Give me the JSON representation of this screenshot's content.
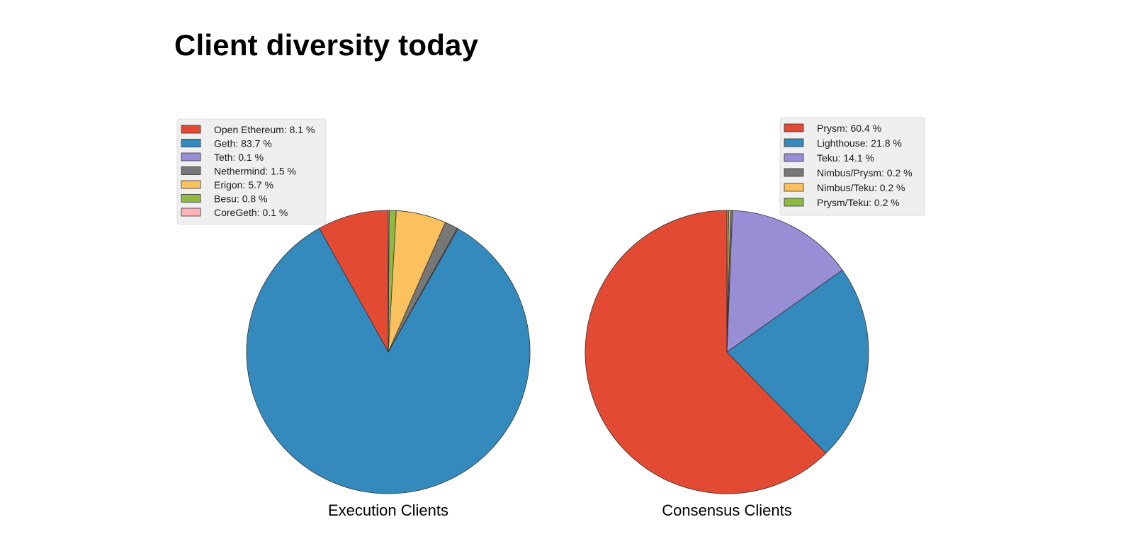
{
  "page": {
    "title": "Client diversity today"
  },
  "chart_data": [
    {
      "type": "pie",
      "title": "Execution Clients",
      "legend_position": "top-left",
      "start_angle_deg": 90,
      "direction": "counterclockwise",
      "slices": [
        {
          "label": "Open Ethereum",
          "value": 8.1,
          "legend": "Open Ethereum: 8.1 %",
          "color": "#E24A33"
        },
        {
          "label": "Geth",
          "value": 83.7,
          "legend": "Geth: 83.7 %",
          "color": "#348ABD"
        },
        {
          "label": "Teth",
          "value": 0.1,
          "legend": "Teth: 0.1 %",
          "color": "#988ED5"
        },
        {
          "label": "Nethermind",
          "value": 1.5,
          "legend": "Nethermind: 1.5 %",
          "color": "#777777"
        },
        {
          "label": "Erigon",
          "value": 5.7,
          "legend": "Erigon: 5.7 %",
          "color": "#FBC15E"
        },
        {
          "label": "Besu",
          "value": 0.8,
          "legend": "Besu: 0.8 %",
          "color": "#8EBA42"
        },
        {
          "label": "CoreGeth",
          "value": 0.1,
          "legend": "CoreGeth: 0.1 %",
          "color": "#FFB5B8"
        }
      ]
    },
    {
      "type": "pie",
      "title": "Consensus Clients",
      "legend_position": "top-right",
      "start_angle_deg": 90,
      "direction": "counterclockwise",
      "slices": [
        {
          "label": "Prysm",
          "value": 60.4,
          "legend": "Prysm: 60.4 %",
          "color": "#E24A33"
        },
        {
          "label": "Lighthouse",
          "value": 21.8,
          "legend": "Lighthouse: 21.8 %",
          "color": "#348ABD"
        },
        {
          "label": "Teku",
          "value": 14.1,
          "legend": "Teku: 14.1 %",
          "color": "#988ED5"
        },
        {
          "label": "Nimbus/Prysm",
          "value": 0.2,
          "legend": "Nimbus/Prysm: 0.2 %",
          "color": "#777777"
        },
        {
          "label": "Nimbus/Teku",
          "value": 0.2,
          "legend": "Nimbus/Teku: 0.2 %",
          "color": "#FBC15E"
        },
        {
          "label": "Prysm/Teku",
          "value": 0.2,
          "legend": "Prysm/Teku: 0.2 %",
          "color": "#8EBA42"
        }
      ]
    }
  ]
}
